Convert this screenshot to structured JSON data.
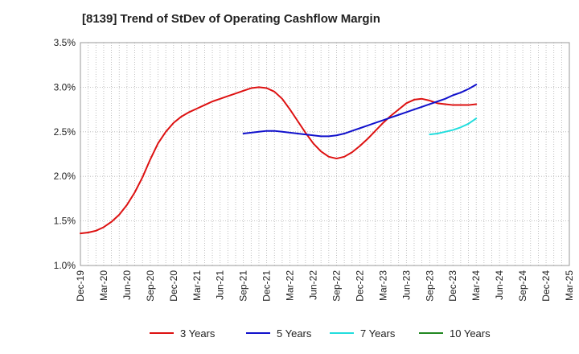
{
  "chart_data": {
    "type": "line",
    "title": "[8139]  Trend of StDev of Operating Cashflow Margin",
    "xlabel": "",
    "ylabel": "",
    "ylim": [
      1.0,
      3.5
    ],
    "yticks": [
      "1.0%",
      "1.5%",
      "2.0%",
      "2.5%",
      "3.0%",
      "3.5%"
    ],
    "ytick_values": [
      1.0,
      1.5,
      2.0,
      2.5,
      3.0,
      3.5
    ],
    "xlim": [
      "2019-12",
      "2025-03"
    ],
    "xticks": [
      "Dec-19",
      "Mar-20",
      "Jun-20",
      "Sep-20",
      "Dec-20",
      "Mar-21",
      "Jun-21",
      "Sep-21",
      "Dec-21",
      "Mar-22",
      "Jun-22",
      "Sep-22",
      "Dec-22",
      "Mar-23",
      "Jun-23",
      "Sep-23",
      "Dec-23",
      "Mar-24",
      "Jun-24",
      "Sep-24",
      "Dec-24",
      "Mar-25"
    ],
    "grid": true,
    "legend_position": "bottom",
    "series": [
      {
        "name": "3 Years",
        "color": "#dd1111",
        "x": [
          "2019-12",
          "2020-01",
          "2020-02",
          "2020-03",
          "2020-04",
          "2020-05",
          "2020-06",
          "2020-07",
          "2020-08",
          "2020-09",
          "2020-10",
          "2020-11",
          "2020-12",
          "2021-01",
          "2021-02",
          "2021-03",
          "2021-04",
          "2021-05",
          "2021-06",
          "2021-07",
          "2021-08",
          "2021-09",
          "2021-10",
          "2021-11",
          "2021-12",
          "2022-01",
          "2022-02",
          "2022-03",
          "2022-04",
          "2022-05",
          "2022-06",
          "2022-07",
          "2022-08",
          "2022-09",
          "2022-10",
          "2022-11",
          "2022-12",
          "2023-01",
          "2023-02",
          "2023-03",
          "2023-04",
          "2023-05",
          "2023-06",
          "2023-07",
          "2023-08",
          "2023-09",
          "2023-10",
          "2023-11",
          "2023-12",
          "2024-01",
          "2024-02",
          "2024-03"
        ],
        "values": [
          1.36,
          1.37,
          1.39,
          1.43,
          1.49,
          1.57,
          1.68,
          1.82,
          1.99,
          2.19,
          2.37,
          2.5,
          2.6,
          2.67,
          2.72,
          2.76,
          2.8,
          2.84,
          2.87,
          2.9,
          2.93,
          2.96,
          2.99,
          3.0,
          2.99,
          2.95,
          2.87,
          2.75,
          2.62,
          2.49,
          2.37,
          2.28,
          2.22,
          2.2,
          2.22,
          2.27,
          2.34,
          2.42,
          2.51,
          2.6,
          2.68,
          2.75,
          2.82,
          2.86,
          2.87,
          2.85,
          2.82,
          2.81,
          2.8,
          2.8,
          2.8,
          2.81
        ]
      },
      {
        "name": "5 Years",
        "color": "#1111cc",
        "x": [
          "2021-09",
          "2021-10",
          "2021-11",
          "2021-12",
          "2022-01",
          "2022-02",
          "2022-03",
          "2022-04",
          "2022-05",
          "2022-06",
          "2022-07",
          "2022-08",
          "2022-09",
          "2022-10",
          "2022-11",
          "2022-12",
          "2023-01",
          "2023-02",
          "2023-03",
          "2023-04",
          "2023-05",
          "2023-06",
          "2023-07",
          "2023-08",
          "2023-09",
          "2023-10",
          "2023-11",
          "2023-12",
          "2024-01",
          "2024-02",
          "2024-03"
        ],
        "values": [
          2.48,
          2.49,
          2.5,
          2.51,
          2.51,
          2.5,
          2.49,
          2.48,
          2.47,
          2.46,
          2.45,
          2.45,
          2.46,
          2.48,
          2.51,
          2.54,
          2.57,
          2.6,
          2.63,
          2.66,
          2.69,
          2.72,
          2.75,
          2.78,
          2.81,
          2.84,
          2.87,
          2.91,
          2.94,
          2.98,
          3.03
        ]
      },
      {
        "name": "7 Years",
        "color": "#22dddd",
        "x": [
          "2023-09",
          "2023-10",
          "2023-11",
          "2023-12",
          "2024-01",
          "2024-02",
          "2024-03"
        ],
        "values": [
          2.47,
          2.48,
          2.5,
          2.52,
          2.55,
          2.59,
          2.65
        ]
      },
      {
        "name": "10 Years",
        "color": "#228822",
        "x": [],
        "values": []
      }
    ]
  }
}
